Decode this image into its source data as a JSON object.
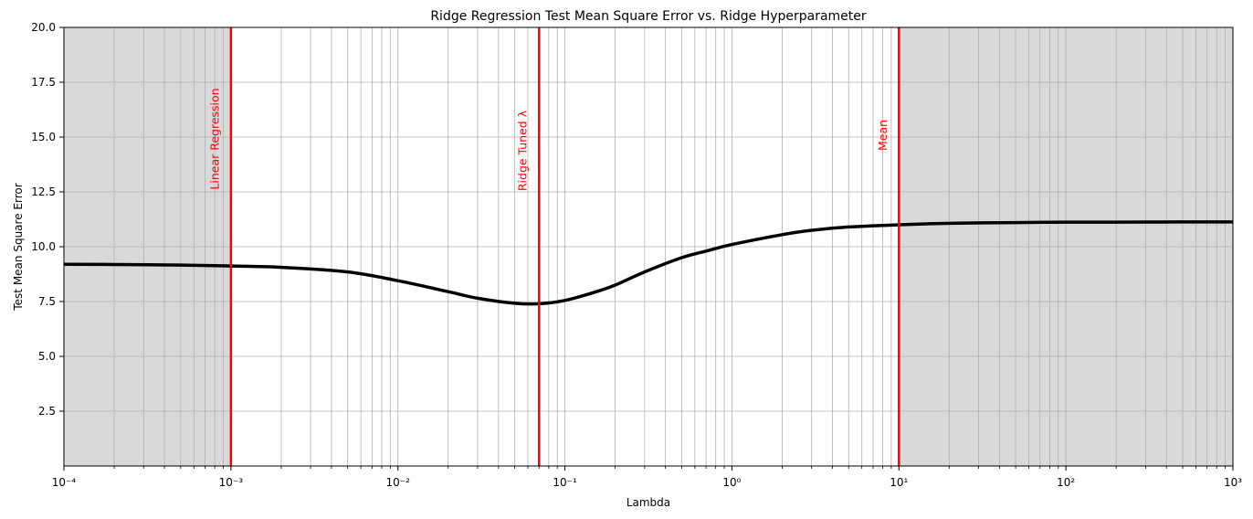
{
  "chart_data": {
    "type": "line",
    "title": "Ridge Regression Test Mean Square Error vs. Ridge Hyperparameter",
    "xlabel": "Lambda",
    "ylabel": "Test Mean Square Error",
    "xscale": "log",
    "xlim": [
      0.0001,
      1000
    ],
    "ylim": [
      0,
      20
    ],
    "grid": true,
    "x_ticks": [
      0.0001,
      0.001,
      0.01,
      0.1,
      1,
      10,
      100,
      1000
    ],
    "x_tick_labels": [
      "10⁻⁴",
      "10⁻³",
      "10⁻²",
      "10⁻¹",
      "10⁰",
      "10¹",
      "10²",
      "10³"
    ],
    "y_ticks": [
      2.5,
      5.0,
      7.5,
      10.0,
      12.5,
      15.0,
      17.5,
      20.0
    ],
    "y_tick_labels": [
      "2.5",
      "5.0",
      "7.5",
      "10.0",
      "12.5",
      "15.0",
      "17.5",
      "20.0"
    ],
    "shaded_regions": [
      {
        "x": [
          0.0001,
          0.001
        ],
        "color": "#d9d9d9"
      },
      {
        "x": [
          10,
          1000
        ],
        "color": "#d9d9d9"
      }
    ],
    "vertical_lines": [
      {
        "x": 0.001,
        "label": "Linear Regression",
        "color": "#ff0000"
      },
      {
        "x": 0.07,
        "label": "Ridge Tuned λ",
        "color": "#ff0000"
      },
      {
        "x": 10,
        "label": "Mean",
        "color": "#ff0000"
      }
    ],
    "series": [
      {
        "color": "#000000",
        "x": [
          0.0001,
          0.0002,
          0.0005,
          0.001,
          0.002,
          0.005,
          0.01,
          0.02,
          0.03,
          0.05,
          0.07,
          0.1,
          0.15,
          0.2,
          0.3,
          0.5,
          0.7,
          1,
          2,
          3,
          5,
          10,
          20,
          50,
          100,
          200,
          500,
          1000
        ],
        "y": [
          9.2,
          9.19,
          9.16,
          9.12,
          9.06,
          8.85,
          8.45,
          7.95,
          7.65,
          7.42,
          7.4,
          7.55,
          7.92,
          8.25,
          8.85,
          9.5,
          9.8,
          10.1,
          10.55,
          10.75,
          10.9,
          11.0,
          11.07,
          11.1,
          11.12,
          11.12,
          11.13,
          11.13
        ]
      }
    ]
  }
}
